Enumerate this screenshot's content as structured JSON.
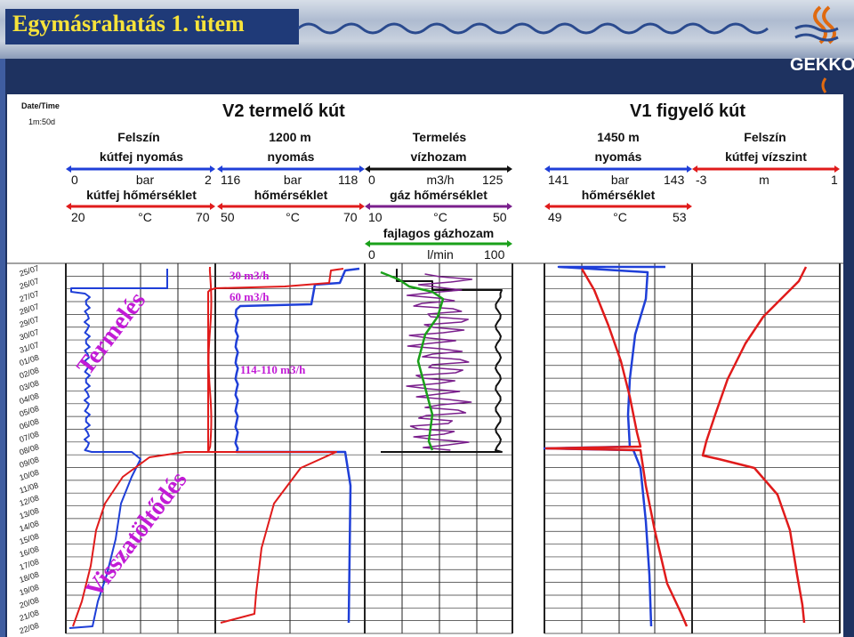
{
  "slide": {
    "title": "Egymásrahatás 1. ütem",
    "logo_text": "GEKKO",
    "accent_title": "#f7e33a",
    "accent_bg": "#1f3a78"
  },
  "header": {
    "date_label": "Date/Time",
    "date_scale": "1m:50d",
    "v2_title": "V2 termelő kút",
    "v1_title": "V1 figyelő kút",
    "groups": {
      "felszin_left": "Felszín",
      "v2_depth": "1200 m",
      "termeles": "Termelés",
      "v1_depth": "1450 m",
      "felszin_right": "Felszín"
    },
    "tracks": [
      {
        "name": "kútfej nyomás",
        "min": "0",
        "unit": "bar",
        "max": "2",
        "color": "#1f3fd8"
      },
      {
        "name": "nyomás",
        "min": "116",
        "unit": "bar",
        "max": "118",
        "color": "#1f3fd8"
      },
      {
        "name": "vízhozam",
        "min": "0",
        "unit": "m3/h",
        "max": "125",
        "color": "#111111"
      },
      {
        "name": "nyomás",
        "min": "141",
        "unit": "bar",
        "max": "143",
        "color": "#1f3fd8"
      },
      {
        "name": "kútfej vízszint",
        "min": "-3",
        "unit": "m",
        "max": "1",
        "color": "#e01b1b"
      },
      {
        "name": "kútfej hőmérséklet",
        "min": "20",
        "unit": "°C",
        "max": "70",
        "color": "#e01b1b"
      },
      {
        "name": "hőmérséklet",
        "min": "50",
        "unit": "°C",
        "max": "70",
        "color": "#e01b1b"
      },
      {
        "name": "gáz hőmérséklet",
        "min": "10",
        "unit": "°C",
        "max": "50",
        "color": "#7a1f8c"
      },
      {
        "name": "hőmérséklet",
        "min": "49",
        "unit": "°C",
        "max": "53",
        "color": "#e01b1b"
      },
      {
        "name": "fajlagos gázhozam",
        "min": "0",
        "unit": "l/min",
        "max": "100",
        "color": "#1aa01a"
      }
    ]
  },
  "annotations": {
    "rate1": "30 m3/h",
    "rate2": "60 m3/h",
    "rate3": "114-110 m3/h",
    "phase1": "Termelés",
    "phase2": "Visszatöltődés",
    "phase_color": "#c21bd6"
  },
  "dates": [
    "25/07",
    "26/07",
    "27/07",
    "28/07",
    "29/07",
    "30/07",
    "31/07",
    "01/08",
    "02/08",
    "03/08",
    "04/08",
    "05/08",
    "06/08",
    "07/08",
    "08/08",
    "09/08",
    "10/08",
    "11/08",
    "12/08",
    "13/08",
    "14/08",
    "15/08",
    "16/08",
    "17/08",
    "18/08",
    "19/08",
    "20/08",
    "21/08",
    "22/08"
  ]
}
